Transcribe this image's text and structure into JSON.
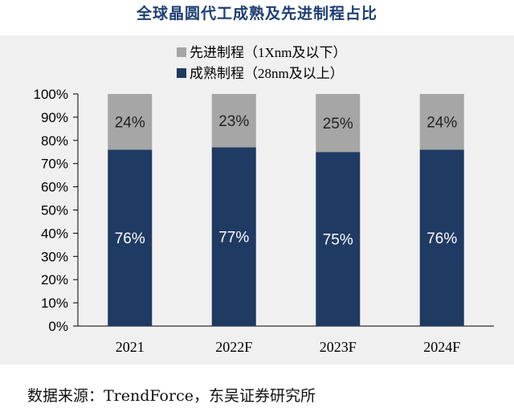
{
  "chart_data": {
    "type": "bar",
    "stacked": true,
    "title": "全球晶圆代工成熟及先进制程占比",
    "categories": [
      "2021",
      "2022F",
      "2023F",
      "2024F"
    ],
    "series": [
      {
        "name": "成熟制程（28nm及以上）",
        "values": [
          76,
          77,
          75,
          76
        ],
        "labels": [
          "76%",
          "77%",
          "75%",
          "76%"
        ],
        "color": "#1f3a63"
      },
      {
        "name": "先进制程（1Xnm及以下）",
        "values": [
          24,
          23,
          25,
          24
        ],
        "labels": [
          "24%",
          "23%",
          "25%",
          "24%"
        ],
        "color": "#a6a6a6"
      }
    ],
    "ylim": [
      0,
      100
    ],
    "yticks": [
      0,
      10,
      20,
      30,
      40,
      50,
      60,
      70,
      80,
      90,
      100
    ],
    "ytick_labels": [
      "0%",
      "10%",
      "20%",
      "30%",
      "40%",
      "50%",
      "60%",
      "70%",
      "80%",
      "90%",
      "100%"
    ],
    "xlabel": "",
    "ylabel": "",
    "grid": false,
    "legend_position": "top-left",
    "legend": [
      {
        "label": "先进制程（1Xnm及以下）",
        "color": "#a6a6a6"
      },
      {
        "label": "成熟制程（28nm及以上）",
        "color": "#1f3a63"
      }
    ]
  },
  "source": "数据来源：TrendForce，东吴证券研究所"
}
